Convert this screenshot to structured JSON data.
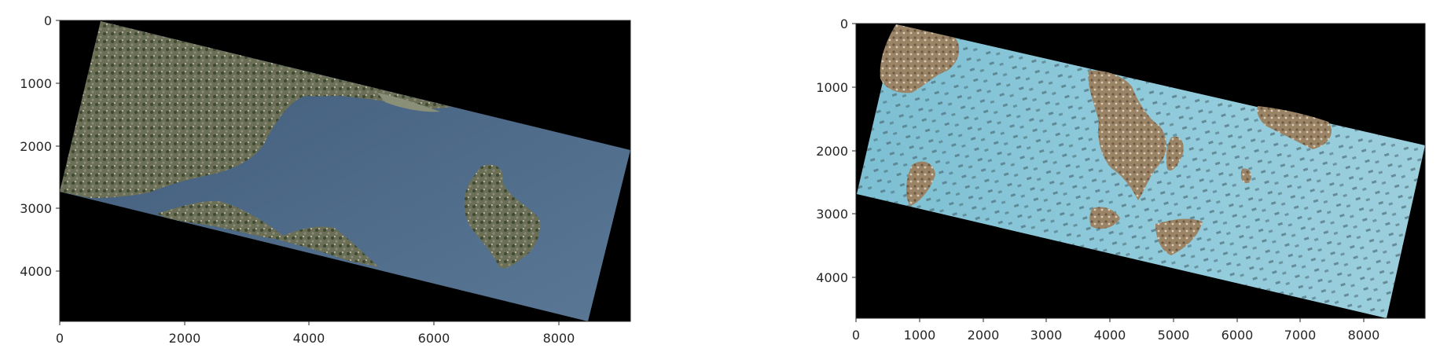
{
  "panels": [
    {
      "id": "left",
      "x_ticks": [
        "0",
        "2000",
        "4000",
        "6000",
        "8000"
      ],
      "y_ticks": [
        "0",
        "1000",
        "2000",
        "3000",
        "4000"
      ],
      "colors": {
        "background": "#000000",
        "land": "#6f7358",
        "water": "#4e6a86"
      }
    },
    {
      "id": "right",
      "x_ticks": [
        "0",
        "1000",
        "2000",
        "3000",
        "4000",
        "5000",
        "6000",
        "7000",
        "8000"
      ],
      "y_ticks": [
        "0",
        "1000",
        "2000",
        "3000",
        "4000"
      ],
      "colors": {
        "background": "#000000",
        "land": "#a08a6c",
        "water": "#8cc6d8"
      }
    }
  ]
}
